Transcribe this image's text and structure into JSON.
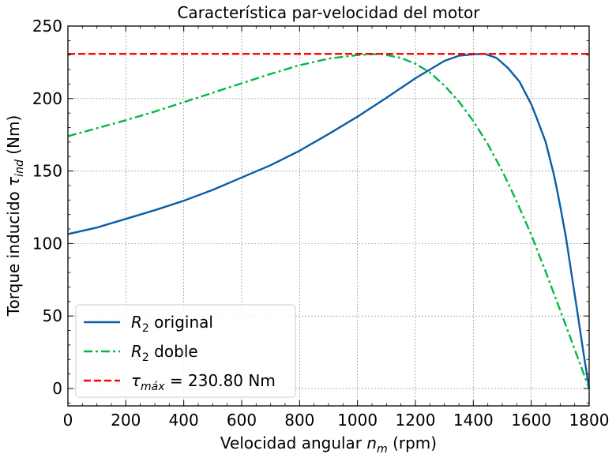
{
  "chart_data": {
    "type": "line",
    "title": "Característica par-velocidad del motor",
    "xlabel": {
      "prefix": "Velocidad angular ",
      "var": "n",
      "sub": "m",
      "suffix": " (rpm)"
    },
    "ylabel": {
      "prefix": "Torque inducido ",
      "var": "τ",
      "sub": "ind",
      "suffix": " (Nm)"
    },
    "xlim": [
      0,
      1800
    ],
    "ylim": [
      -12,
      250
    ],
    "xticks": [
      0,
      200,
      400,
      600,
      800,
      1000,
      1200,
      1400,
      1600,
      1800
    ],
    "yticks": [
      0,
      50,
      100,
      150,
      200,
      250
    ],
    "grid": true,
    "legend_position": "lower-left",
    "series": [
      {
        "key": "original",
        "legend": {
          "var": "R",
          "sub": "2",
          "suffix": " original"
        },
        "color": "#0c5da5",
        "dash": "solid",
        "x": [
          0,
          100,
          200,
          300,
          400,
          500,
          600,
          700,
          800,
          900,
          1000,
          1100,
          1200,
          1300,
          1350,
          1400,
          1440,
          1480,
          1520,
          1560,
          1600,
          1620,
          1650,
          1680,
          1700,
          1720,
          1740,
          1760,
          1780,
          1800
        ],
        "y": [
          106.5,
          111.0,
          117.0,
          123.0,
          129.5,
          137.0,
          145.5,
          154.0,
          164.0,
          175.5,
          187.5,
          200.5,
          214.0,
          226.0,
          229.5,
          230.5,
          230.8,
          228.0,
          221.0,
          211.5,
          196.0,
          186.0,
          170.0,
          146.0,
          126.0,
          104.0,
          78.0,
          52.0,
          25.0,
          0
        ]
      },
      {
        "key": "doble",
        "legend": {
          "var": "R",
          "sub": "2",
          "suffix": " doble"
        },
        "color": "#00b945",
        "dash": "dashdot",
        "x": [
          0,
          100,
          200,
          300,
          400,
          500,
          600,
          700,
          800,
          900,
          1000,
          1080,
          1150,
          1200,
          1250,
          1300,
          1350,
          1400,
          1450,
          1500,
          1550,
          1600,
          1650,
          1700,
          1750,
          1800
        ],
        "y": [
          174.0,
          179.5,
          185.0,
          191.0,
          197.5,
          204.0,
          210.5,
          217.0,
          223.0,
          227.5,
          230.0,
          230.8,
          228.0,
          224.0,
          218.0,
          209.0,
          198.0,
          184.5,
          168.5,
          150.0,
          129.0,
          106.0,
          80.5,
          54.0,
          27.0,
          0
        ]
      },
      {
        "key": "max",
        "legend": {
          "var": "τ",
          "sub": "máx",
          "suffix": " = 230.80 Nm"
        },
        "color": "#ff0000",
        "dash": "dashed",
        "x": [
          0,
          1800
        ],
        "y": [
          230.8,
          230.8
        ]
      }
    ]
  }
}
